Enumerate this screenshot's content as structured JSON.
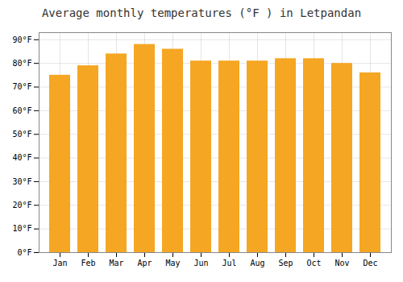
{
  "chart_data": {
    "type": "bar",
    "title": "Average monthly temperatures (°F ) in Letpandan",
    "categories": [
      "Jan",
      "Feb",
      "Mar",
      "Apr",
      "May",
      "Jun",
      "Jul",
      "Aug",
      "Sep",
      "Oct",
      "Nov",
      "Dec"
    ],
    "values": [
      75,
      79,
      84,
      88,
      86,
      81,
      81,
      81,
      82,
      82,
      80,
      76
    ],
    "color": "#F5A623",
    "ylim": [
      0,
      93
    ],
    "yticks": [
      {
        "value": 0,
        "label": "0°F"
      },
      {
        "value": 10,
        "label": "10°F"
      },
      {
        "value": 20,
        "label": "20°F"
      },
      {
        "value": 30,
        "label": "30°F"
      },
      {
        "value": 40,
        "label": "40°F"
      },
      {
        "value": 50,
        "label": "50°F"
      },
      {
        "value": 60,
        "label": "60°F"
      },
      {
        "value": 70,
        "label": "70°F"
      },
      {
        "value": 80,
        "label": "80°F"
      },
      {
        "value": 90,
        "label": "90°F"
      }
    ],
    "grid": true
  }
}
